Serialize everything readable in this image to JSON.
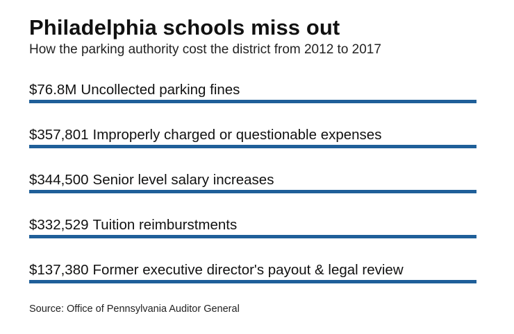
{
  "header": {
    "title": "Philadelphia schools miss out",
    "subtitle": "How the parking authority cost the district from 2012 to 2017"
  },
  "items": [
    {
      "amount": "$76.8M",
      "label": "Uncollected parking fines"
    },
    {
      "amount": "$357,801",
      "label": "Improperly charged or questionable expenses"
    },
    {
      "amount": "$344,500",
      "label": "Senior level salary increases"
    },
    {
      "amount": "$332,529",
      "label": "Tuition reimburstments"
    },
    {
      "amount": "$137,380",
      "label": "Former executive director's payout & legal review"
    }
  ],
  "footer": {
    "source": "Source: Office of Pennsylvania Auditor General"
  },
  "colors": {
    "bar": "#1f5f99"
  }
}
